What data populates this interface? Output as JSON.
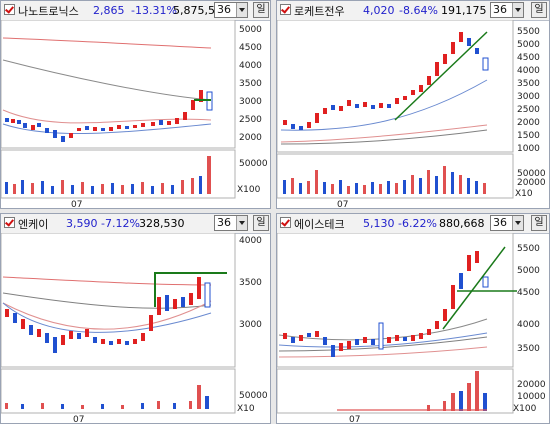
{
  "panels": [
    {
      "name": "나노트로닉스",
      "price": "2,865",
      "change": "-13.31%",
      "volume": "5,875,505",
      "period": "36",
      "period_btn": "일",
      "price_ticks": [
        "5000",
        "4500",
        "4000",
        "3500",
        "3000",
        "2500",
        "2000"
      ],
      "volume_ticks": [
        "50000"
      ],
      "volume_unit": "X100",
      "date_label": "07"
    },
    {
      "name": "로케트전우",
      "price": "4,020",
      "change": "-8.64%",
      "volume": "191,175",
      "period": "36",
      "period_btn": "일",
      "price_ticks": [
        "5500",
        "5000",
        "4500",
        "4000",
        "3500",
        "3000",
        "2500",
        "2000",
        "1500",
        "1000"
      ],
      "volume_ticks": [
        "50000",
        "20000"
      ],
      "volume_unit": "X10",
      "date_label": "07"
    },
    {
      "name": "엔케이",
      "price": "3,590",
      "change": "-7.12%",
      "volume": "328,530",
      "period": "36",
      "period_btn": "일",
      "price_ticks": [
        "4000",
        "3500",
        "3000"
      ],
      "volume_ticks": [
        "50000"
      ],
      "volume_unit": "X10",
      "date_label": "07"
    },
    {
      "name": "에이스테크",
      "price": "5,130",
      "change": "-6.22%",
      "volume": "880,668",
      "period": "36",
      "period_btn": "일",
      "price_ticks": [
        "5500",
        "5000",
        "4500",
        "4000",
        "3500"
      ],
      "volume_ticks": [
        "20000",
        "10000"
      ],
      "volume_unit": "X100",
      "date_label": "07"
    }
  ]
}
